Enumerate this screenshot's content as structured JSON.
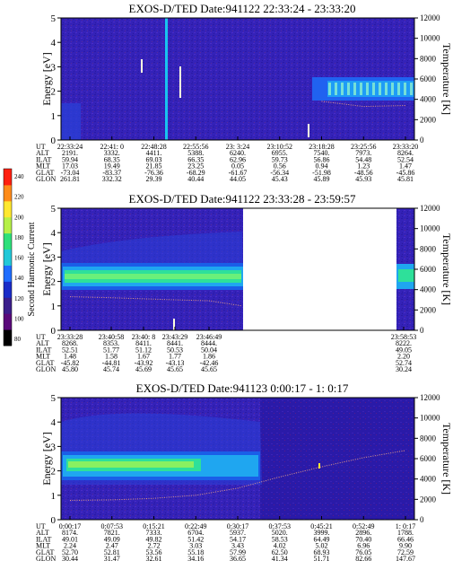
{
  "chart_data": [
    {
      "type": "heatmap",
      "title": "EXOS-D/TED   Date:941122   22:33:24 - 23:33:20",
      "ylabel": "Energy [eV]",
      "y2label": "Temperature [K]",
      "ylim": [
        0,
        5
      ],
      "y2lim": [
        0,
        12000
      ],
      "yticks": [
        "0",
        "1",
        "2",
        "3",
        "4",
        "5"
      ],
      "y2ticks": [
        "0",
        "2000",
        "4000",
        "6000",
        "8000",
        "10000",
        "12000"
      ],
      "row_labels": [
        "UT",
        "ALT",
        "ILAT",
        "MLT",
        "GLAT",
        "GLON"
      ],
      "columns": [
        [
          "22:33:24",
          "2191.",
          "59.94",
          "17.03",
          "-73.04",
          "261.81"
        ],
        [
          "22:41: 0",
          "3332.",
          "68.35",
          "19.49",
          "-83.37",
          "332.32"
        ],
        [
          "22:48:28",
          "4411.",
          "69.03",
          "21.85",
          "-76.36",
          "29.39"
        ],
        [
          "22:55:56",
          "5388.",
          "66.35",
          "23.25",
          "-68.29",
          "40.44"
        ],
        [
          "23: 3:24",
          "6240.",
          "62.96",
          "0.05",
          "-61.67",
          "44.05"
        ],
        [
          "23:10:52",
          "6955.",
          "59.73",
          "0.56",
          "-56.34",
          "45.43"
        ],
        [
          "23:18:28",
          "7540.",
          "56.86",
          "0.94",
          "-51.98",
          "45.89"
        ],
        [
          "23:25:56",
          "7973.",
          "54.48",
          "1.23",
          "-48.56",
          "45.93"
        ],
        [
          "23:33:20",
          "8264.",
          "52.54",
          "1.47",
          "-45.86",
          "45.81"
        ]
      ],
      "series": [
        {
          "name": "energy spectrum band",
          "values": [
            0,
            0,
            0,
            0,
            0,
            0,
            0,
            2.2,
            2.2
          ]
        },
        {
          "name": "temperature trace",
          "unit": "K",
          "values": [
            null,
            null,
            null,
            null,
            null,
            null,
            3800,
            3300,
            3400
          ]
        }
      ]
    },
    {
      "type": "heatmap",
      "title": "EXOS-D/TED   Date:941122   23:33:28 - 23:59:57",
      "ylabel": "Energy [eV]",
      "y2label": "Temperature [K]",
      "ylim": [
        0,
        5
      ],
      "y2lim": [
        0,
        12000
      ],
      "yticks": [
        "0",
        "1",
        "2",
        "3",
        "4",
        "5"
      ],
      "y2ticks": [
        "0",
        "2000",
        "4000",
        "6000",
        "8000",
        "10000",
        "12000"
      ],
      "row_labels": [
        "UT",
        "ALT",
        "ILAT",
        "MLT",
        "GLAT",
        "GLON"
      ],
      "columns": [
        [
          "23:33:28",
          "8268.",
          "52.51",
          "1.48",
          "-45.82",
          "45.80"
        ],
        [
          "23:40:58",
          "8353.",
          "51.77",
          "1.58",
          "-44.81",
          "45.74"
        ],
        [
          "23:40: 8",
          "8411.",
          "51.12",
          "1.67",
          "-43.92",
          "45.69"
        ],
        [
          "23:43:29",
          "8441.",
          "50.53",
          "1.77",
          "-43.13",
          "45.65"
        ],
        [
          "23:46:49",
          "8444.",
          "50.04",
          "1.86",
          "-42.46",
          "45.65"
        ],
        [
          "23:58:53",
          "8222.",
          "49.05",
          "2.20",
          "52.74",
          "30.24"
        ]
      ],
      "series": [
        {
          "name": "energy spectrum band",
          "values": [
            2.3,
            2.3,
            2.3,
            2.3,
            2.3,
            2.2
          ]
        },
        {
          "name": "temperature trace",
          "unit": "K",
          "values": [
            3300,
            3200,
            3100,
            3000,
            2900,
            2400
          ]
        }
      ],
      "colorbar": {
        "label": "Second Harmonic Current",
        "ticks": [
          "80",
          "100",
          "120",
          "140",
          "160",
          "180",
          "200",
          "220",
          "240"
        ],
        "colors": [
          "#000000",
          "#5a0a7a",
          "#3b1f8c",
          "#1a2cc8",
          "#1f6dff",
          "#22c8d8",
          "#2ee07a",
          "#b6f048",
          "#ffe830",
          "#ff8c1a",
          "#ff2010"
        ]
      }
    },
    {
      "type": "heatmap",
      "title": "EXOS-D/TED   Date:941123   0:00:17 - 1: 0:17",
      "ylabel": "Energy [eV]",
      "y2label": "Temperature [K]",
      "ylim": [
        0,
        5
      ],
      "y2lim": [
        0,
        12000
      ],
      "yticks": [
        "0",
        "1",
        "2",
        "3",
        "4",
        "5"
      ],
      "y2ticks": [
        "0",
        "2000",
        "4000",
        "6000",
        "8000",
        "10000",
        "12000"
      ],
      "row_labels": [
        "UT",
        "ALT",
        "ILAT",
        "MLT",
        "GLAT",
        "GLON"
      ],
      "columns": [
        [
          "0:00:17",
          "8174.",
          "49.01",
          "2.24",
          "52.70",
          "30.44"
        ],
        [
          "0:07:53",
          "7821.",
          "49.09",
          "2.47",
          "52.81",
          "31.47"
        ],
        [
          "0:15:21",
          "7333.",
          "49.82",
          "2.72",
          "53.56",
          "32.61"
        ],
        [
          "0:22:49",
          "6704.",
          "51.42",
          "3.03",
          "55.18",
          "34.16"
        ],
        [
          "0:30:17",
          "5937.",
          "54.17",
          "3.43",
          "57.99",
          "36.65"
        ],
        [
          "0:37:53",
          "5020.",
          "58.53",
          "4.02",
          "62.50",
          "41.34"
        ],
        [
          "0:45:21",
          "3999.",
          "64.49",
          "5.02",
          "68.93",
          "51.71"
        ],
        [
          "0:52:49",
          "2896.",
          "70.40",
          "6.96",
          "76.05",
          "82.66"
        ],
        [
          "1: 0:17",
          "1788.",
          "66.46",
          "9.90",
          "72.59",
          "147.67"
        ]
      ],
      "series": [
        {
          "name": "energy spectrum band",
          "values": [
            2.3,
            2.3,
            2.4,
            2.4,
            2.5,
            0,
            0,
            0,
            0
          ]
        },
        {
          "name": "temperature trace",
          "unit": "K",
          "values": [
            1900,
            1950,
            2100,
            2400,
            3100,
            4200,
            5200,
            6100,
            6800
          ]
        }
      ]
    }
  ]
}
